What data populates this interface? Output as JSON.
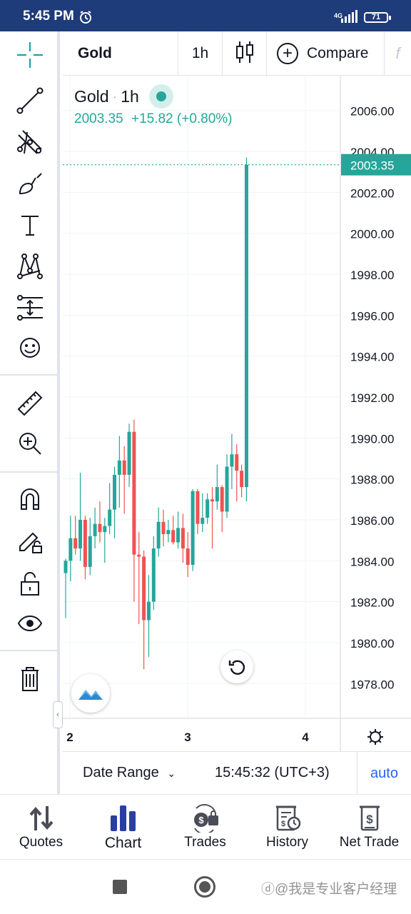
{
  "status_bar": {
    "time": "5:45 PM",
    "network": "4G",
    "battery": "71"
  },
  "header": {
    "symbol": "Gold",
    "interval": "1h",
    "compare_label": "Compare"
  },
  "legend": {
    "symbol": "Gold",
    "interval": "1h",
    "price": "2003.35",
    "change": "+15.82 (+0.80%)"
  },
  "chart_data": {
    "type": "candlestick",
    "title": "",
    "symbol": "Gold",
    "interval": "1h",
    "ylim": [
      1976.3,
      2007.7
    ],
    "price_axis_labels": [
      "2006.00",
      "2004.00",
      "2002.00",
      "2000.00",
      "1998.00",
      "1996.00",
      "1994.00",
      "1992.00",
      "1990.00",
      "1988.00",
      "1986.00",
      "1984.00",
      "1982.00",
      "1980.00",
      "1978.00"
    ],
    "time_axis_labels": [
      "2",
      "3",
      "4"
    ],
    "last_price": 2003.35,
    "last_price_label": "2003.35",
    "candles": [
      {
        "o": 1983.4,
        "h": 1984.1,
        "l": 1981.2,
        "c": 1984.0
      },
      {
        "o": 1984.0,
        "h": 1986.2,
        "l": 1983.0,
        "c": 1985.1
      },
      {
        "o": 1985.1,
        "h": 1986.2,
        "l": 1984.3,
        "c": 1984.6
      },
      {
        "o": 1984.6,
        "h": 1988.3,
        "l": 1984.0,
        "c": 1986.0
      },
      {
        "o": 1986.0,
        "h": 1986.2,
        "l": 1983.1,
        "c": 1983.7
      },
      {
        "o": 1983.7,
        "h": 1986.1,
        "l": 1983.3,
        "c": 1985.2
      },
      {
        "o": 1985.2,
        "h": 1986.6,
        "l": 1984.6,
        "c": 1985.8
      },
      {
        "o": 1985.8,
        "h": 1986.9,
        "l": 1984.9,
        "c": 1985.4
      },
      {
        "o": 1985.4,
        "h": 1986.1,
        "l": 1983.9,
        "c": 1985.7
      },
      {
        "o": 1985.7,
        "h": 1987.8,
        "l": 1985.3,
        "c": 1986.5
      },
      {
        "o": 1986.5,
        "h": 1988.6,
        "l": 1985.1,
        "c": 1988.2
      },
      {
        "o": 1988.2,
        "h": 1990.1,
        "l": 1986.6,
        "c": 1988.9
      },
      {
        "o": 1988.9,
        "h": 1989.6,
        "l": 1986.3,
        "c": 1988.2
      },
      {
        "o": 1988.2,
        "h": 1990.7,
        "l": 1987.6,
        "c": 1990.3
      },
      {
        "o": 1990.3,
        "h": 1990.9,
        "l": 1982.0,
        "c": 1984.3
      },
      {
        "o": 1984.3,
        "h": 1985.4,
        "l": 1980.9,
        "c": 1984.2
      },
      {
        "o": 1984.2,
        "h": 1984.5,
        "l": 1978.7,
        "c": 1981.1
      },
      {
        "o": 1981.1,
        "h": 1983.3,
        "l": 1979.3,
        "c": 1982.0
      },
      {
        "o": 1982.0,
        "h": 1985.2,
        "l": 1981.6,
        "c": 1984.6
      },
      {
        "o": 1984.6,
        "h": 1986.6,
        "l": 1984.2,
        "c": 1985.9
      },
      {
        "o": 1985.9,
        "h": 1986.5,
        "l": 1984.7,
        "c": 1985.3
      },
      {
        "o": 1985.3,
        "h": 1986.0,
        "l": 1984.9,
        "c": 1985.5
      },
      {
        "o": 1985.5,
        "h": 1986.2,
        "l": 1984.8,
        "c": 1984.9
      },
      {
        "o": 1984.9,
        "h": 1986.4,
        "l": 1984.6,
        "c": 1985.6
      },
      {
        "o": 1985.6,
        "h": 1986.3,
        "l": 1983.9,
        "c": 1984.6
      },
      {
        "o": 1984.6,
        "h": 1985.4,
        "l": 1983.2,
        "c": 1983.8
      },
      {
        "o": 1983.8,
        "h": 1987.5,
        "l": 1983.5,
        "c": 1987.4
      },
      {
        "o": 1987.4,
        "h": 1987.5,
        "l": 1985.3,
        "c": 1985.8
      },
      {
        "o": 1985.8,
        "h": 1987.3,
        "l": 1985.4,
        "c": 1986.1
      },
      {
        "o": 1986.1,
        "h": 1987.3,
        "l": 1985.8,
        "c": 1987.0
      },
      {
        "o": 1987.0,
        "h": 1987.6,
        "l": 1984.6,
        "c": 1986.9
      },
      {
        "o": 1986.9,
        "h": 1988.7,
        "l": 1986.5,
        "c": 1987.6
      },
      {
        "o": 1987.6,
        "h": 1987.7,
        "l": 1985.4,
        "c": 1986.4
      },
      {
        "o": 1986.4,
        "h": 1989.2,
        "l": 1986.1,
        "c": 1988.6
      },
      {
        "o": 1988.6,
        "h": 1990.2,
        "l": 1987.5,
        "c": 1989.2
      },
      {
        "o": 1989.2,
        "h": 1989.7,
        "l": 1986.9,
        "c": 1988.4
      },
      {
        "o": 1988.4,
        "h": 1988.7,
        "l": 1987.1,
        "c": 1987.6
      },
      {
        "o": 1987.6,
        "h": 2003.7,
        "l": 1986.9,
        "c": 2003.35
      }
    ],
    "up_color": "#26a69a",
    "down_color": "#ef5350",
    "grid": true
  },
  "range_bar": {
    "date_range_label": "Date Range",
    "clock": "15:45:32 (UTC+3)",
    "auto_label": "auto"
  },
  "bottom_nav": [
    {
      "label": "Quotes",
      "icon": "quotes-icon"
    },
    {
      "label": "Chart",
      "icon": "chart-icon",
      "active": true
    },
    {
      "label": "Trades",
      "icon": "trades-icon"
    },
    {
      "label": "History",
      "icon": "history-icon"
    },
    {
      "label": "Net Trade",
      "icon": "net-trade-icon"
    }
  ],
  "watermark": "我是专业客户经理",
  "colors": {
    "status_bar": "#1e3b7a",
    "accent": "#26a69a",
    "down": "#ef5350",
    "link": "#2962ff"
  }
}
